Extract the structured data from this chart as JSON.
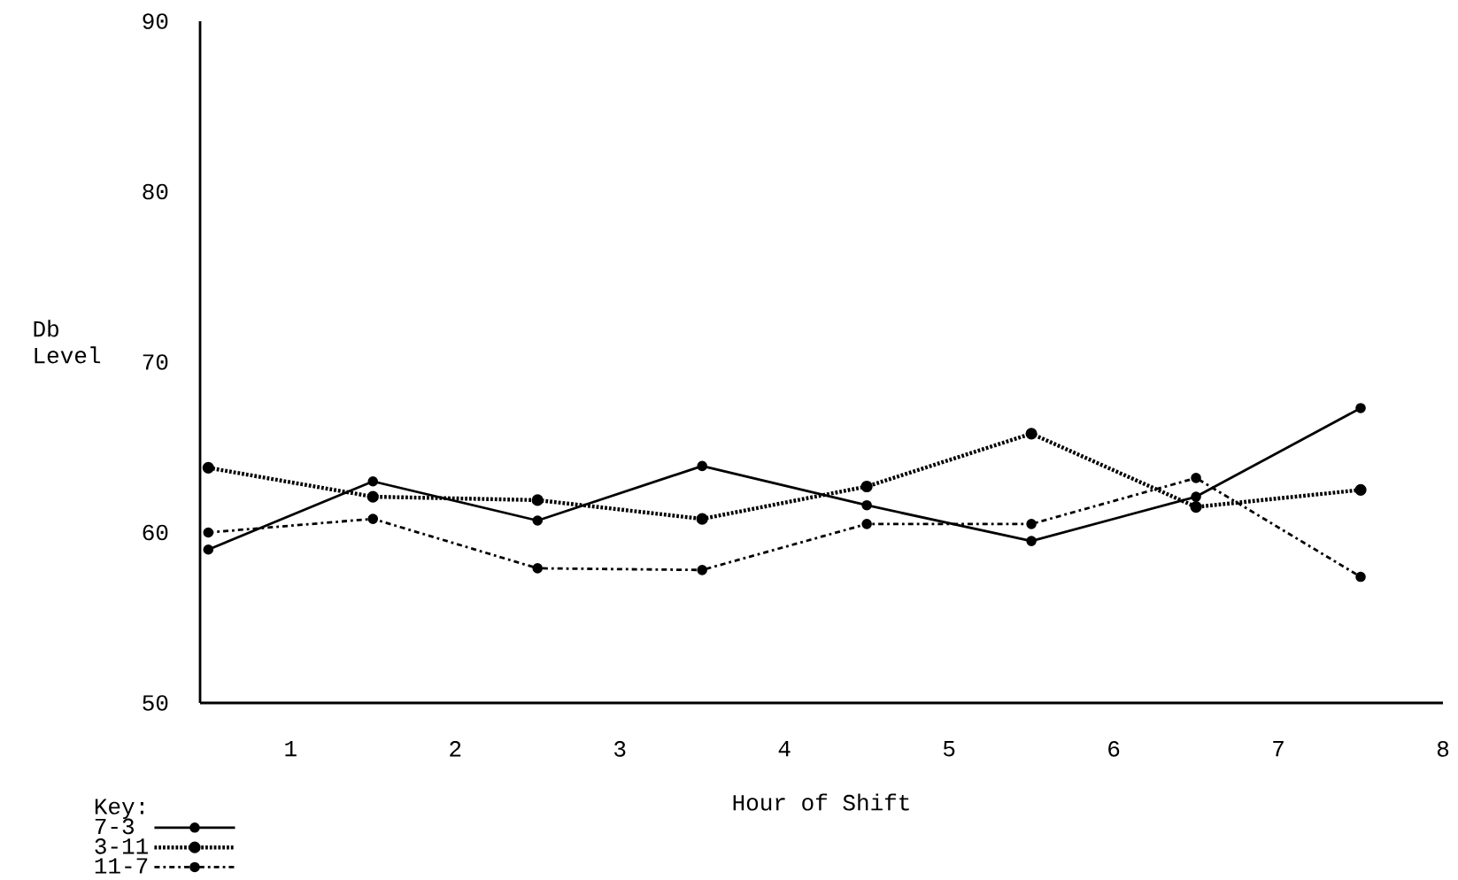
{
  "chart_data": {
    "type": "line",
    "xlabel": "Hour of Shift",
    "ylabel": "Db Level",
    "legend_title": "Key:",
    "legend": "bottom left",
    "marker": "circle",
    "x": [
      0.5,
      1.5,
      2.5,
      3.5,
      4.5,
      5.5,
      6.5,
      7.5
    ],
    "xlim": [
      0.45,
      8
    ],
    "xticks": [
      1,
      2,
      3,
      4,
      5,
      6,
      7,
      8
    ],
    "ylim": [
      50,
      90
    ],
    "yticks": [
      50,
      60,
      70,
      80,
      90
    ],
    "series": [
      {
        "name": "7-3",
        "color": "#000000",
        "line_style": "solid",
        "values": [
          59.0,
          63.0,
          60.7,
          63.9,
          61.6,
          59.5,
          62.1,
          67.3
        ]
      },
      {
        "name": "3-11",
        "color": "#000000",
        "line_style": "dotted",
        "values": [
          63.8,
          62.1,
          61.9,
          60.8,
          62.7,
          65.8,
          61.5,
          62.5
        ]
      },
      {
        "name": "11-7",
        "color": "#000000",
        "line_style": "dash dot",
        "values": [
          60.0,
          60.8,
          57.9,
          57.8,
          60.5,
          60.5,
          63.2,
          57.4
        ]
      }
    ]
  }
}
